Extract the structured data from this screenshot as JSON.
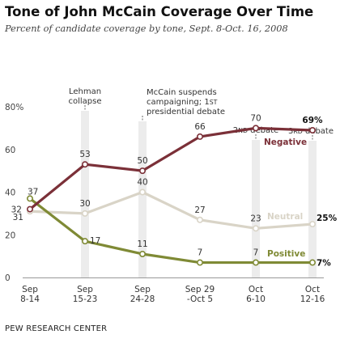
{
  "title": "Tone of John McCain Coverage Over Time",
  "subtitle": "Percent of candidate coverage by tone, Sept. 8-Oct. 16, 2008",
  "source": "PEW RESEARCH CENTER",
  "chart_data": {
    "type": "line",
    "categories": [
      [
        "Sep",
        "8-14"
      ],
      [
        "Sep",
        "15-23"
      ],
      [
        "Sep",
        "24-28"
      ],
      [
        "Sep 29",
        "-Oct 5"
      ],
      [
        "Oct",
        "6-10"
      ],
      [
        "Oct",
        "12-16"
      ]
    ],
    "ylim": [
      0,
      80
    ],
    "yticks": [
      {
        "value": 0,
        "label": "0"
      },
      {
        "value": 20,
        "label": "20"
      },
      {
        "value": 40,
        "label": "40"
      },
      {
        "value": 60,
        "label": "60"
      },
      {
        "value": 80,
        "label": "80%"
      }
    ],
    "grid": false,
    "series": [
      {
        "name": "Negative",
        "color": "#7b3038",
        "values": [
          32,
          53,
          50,
          66,
          70,
          69
        ],
        "labels": [
          "32",
          "53",
          "50",
          "66",
          "70",
          "69%"
        ]
      },
      {
        "name": "Neutral",
        "color": "#d9d4c7",
        "values": [
          31,
          30,
          40,
          27,
          23,
          25
        ],
        "labels": [
          "31",
          "30",
          "40",
          "27",
          "23",
          "25%"
        ]
      },
      {
        "name": "Positive",
        "color": "#7f8a35",
        "values": [
          37,
          17,
          11,
          7,
          7,
          7
        ],
        "labels": [
          "37",
          "17",
          "11",
          "7",
          "7",
          "7%"
        ]
      }
    ],
    "events": [
      {
        "index": 1,
        "lines": [
          "Lehman",
          "collapse"
        ]
      },
      {
        "index": 2,
        "lines": [
          "McCain suspends",
          "campaigning; 1st",
          "presidential debate"
        ]
      },
      {
        "index": 4,
        "lines": [
          "2nd debate"
        ]
      },
      {
        "index": 5,
        "lines": [
          "3rd debate"
        ]
      }
    ]
  }
}
